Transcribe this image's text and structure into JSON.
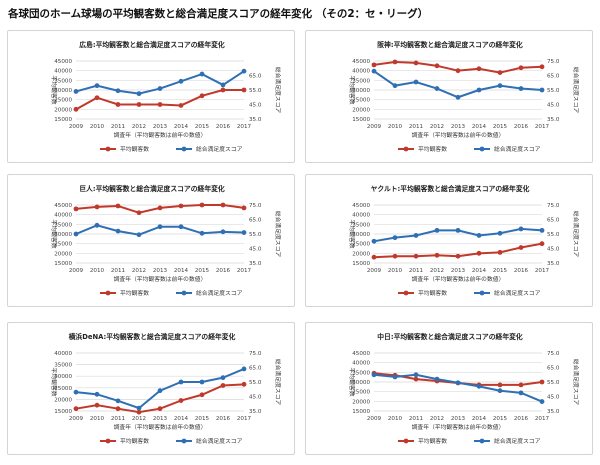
{
  "page_title": "各球団のホーム球場の平均観客数と総合満足度スコアの経年変化 （その2：セ・リーグ）",
  "colors": {
    "attendance": "#c0392b",
    "score": "#2f6fb3",
    "grid": "#d9d9d9"
  },
  "chart_data": [
    {
      "type": "line",
      "title": "広島:平均観客数と総合満足度スコアの経年変化",
      "x": [
        "2009",
        "2010",
        "2011",
        "2012",
        "2013",
        "2014",
        "2015",
        "2016",
        "2017"
      ],
      "xlabel": "調査年（平均観客数は前年の数値）",
      "ylabel_left": "平均観客数",
      "ylabel_right": "総合満足度スコア",
      "left_ticks": [
        "15000",
        "20000",
        "25000",
        "30000",
        "35000",
        "40000",
        "45000"
      ],
      "right_ticks": [
        "35.0",
        "45.0",
        "55.0",
        "65.0"
      ],
      "ylim_left": [
        15000,
        45000
      ],
      "ylim_right": [
        35,
        75
      ],
      "series": [
        {
          "name": "平均観客数",
          "axis": "left",
          "color": "#c0392b",
          "values": [
            20000,
            26000,
            22500,
            22500,
            22500,
            22000,
            27000,
            30000,
            30000
          ]
        },
        {
          "name": "総合満足度スコア",
          "axis": "right",
          "color": "#2f6fb3",
          "values": [
            54.0,
            58.0,
            54.5,
            52.5,
            56.0,
            61.0,
            66.0,
            58.5,
            68.0
          ]
        }
      ],
      "legend": [
        "平均観客数",
        "総合満足度スコア"
      ]
    },
    {
      "type": "line",
      "title": "阪神:平均観客数と総合満足度スコアの経年変化",
      "x": [
        "2009",
        "2010",
        "2011",
        "2012",
        "2013",
        "2014",
        "2015",
        "2016",
        "2017"
      ],
      "xlabel": "調査年（平均観客数は前年の数値）",
      "ylabel_left": "平均観客数",
      "ylabel_right": "総合満足度スコア",
      "left_ticks": [
        "15000",
        "20000",
        "25000",
        "30000",
        "35000",
        "40000",
        "45000"
      ],
      "right_ticks": [
        "35.0",
        "45.0",
        "55.0",
        "65.0",
        "75.0"
      ],
      "ylim_left": [
        15000,
        45000
      ],
      "ylim_right": [
        35,
        75
      ],
      "series": [
        {
          "name": "平均観客数",
          "axis": "left",
          "color": "#c0392b",
          "values": [
            43000,
            44500,
            44000,
            42500,
            40000,
            41000,
            39000,
            41500,
            42000
          ]
        },
        {
          "name": "総合満足度スコア",
          "axis": "right",
          "color": "#2f6fb3",
          "values": [
            68.0,
            58.0,
            60.5,
            56.0,
            50.0,
            55.0,
            58.0,
            56.0,
            55.0
          ]
        }
      ],
      "legend": [
        "平均観客数",
        "総合満足度スコア"
      ]
    },
    {
      "type": "line",
      "title": "巨人:平均観客数と総合満足度スコアの経年変化",
      "x": [
        "2009",
        "2010",
        "2011",
        "2012",
        "2013",
        "2014",
        "2015",
        "2016",
        "2017"
      ],
      "xlabel": "調査年（平均観客数は前年の数値）",
      "ylabel_left": "平均観客数",
      "ylabel_right": "総合満足度スコア",
      "left_ticks": [
        "15000",
        "20000",
        "25000",
        "30000",
        "35000",
        "40000",
        "45000"
      ],
      "right_ticks": [
        "35.0",
        "45.0",
        "55.0",
        "65.0",
        "75.0"
      ],
      "ylim_left": [
        15000,
        45000
      ],
      "ylim_right": [
        35,
        75
      ],
      "series": [
        {
          "name": "平均観客数",
          "axis": "left",
          "color": "#c0392b",
          "values": [
            43000,
            44000,
            44500,
            41000,
            43500,
            44500,
            45000,
            45000,
            43500
          ]
        },
        {
          "name": "総合満足度スコア",
          "axis": "right",
          "color": "#2f6fb3",
          "values": [
            55.0,
            61.0,
            57.0,
            54.5,
            60.0,
            60.0,
            55.5,
            56.5,
            56.0
          ]
        }
      ],
      "legend": [
        "平均観客数",
        "総合満足度スコア"
      ]
    },
    {
      "type": "line",
      "title": "ヤクルト:平均観客数と総合満足度スコアの経年変化",
      "x": [
        "2009",
        "2010",
        "2011",
        "2012",
        "2013",
        "2014",
        "2015",
        "2016",
        "2017"
      ],
      "xlabel": "調査年（平均観客数は前年の数値）",
      "ylabel_left": "平均観客数",
      "ylabel_right": "総合満足度スコア",
      "left_ticks": [
        "15000",
        "20000",
        "25000",
        "30000",
        "35000",
        "40000",
        "45000"
      ],
      "right_ticks": [
        "35.0",
        "45.0",
        "55.0",
        "65.0",
        "75.0"
      ],
      "ylim_left": [
        15000,
        45000
      ],
      "ylim_right": [
        35,
        75
      ],
      "series": [
        {
          "name": "平均観客数",
          "axis": "left",
          "color": "#c0392b",
          "values": [
            18000,
            18500,
            18500,
            19000,
            18500,
            20000,
            20500,
            23000,
            25000
          ]
        },
        {
          "name": "総合満足度スコア",
          "axis": "right",
          "color": "#2f6fb3",
          "values": [
            50.0,
            52.5,
            54.0,
            57.5,
            57.5,
            54.0,
            55.5,
            58.5,
            57.5
          ]
        }
      ],
      "legend": [
        "平均観客数",
        "総合満足度スコア"
      ]
    },
    {
      "type": "line",
      "title": "横浜DeNA:平均観客数と総合満足度スコアの経年変化",
      "x": [
        "2009",
        "2010",
        "2011",
        "2012",
        "2013",
        "2014",
        "2015",
        "2016",
        "2017"
      ],
      "xlabel": "調査年（平均観客数は前年の数値）",
      "ylabel_left": "平均観客数",
      "ylabel_right": "総合満足度スコア",
      "left_ticks": [
        "15000",
        "20000",
        "25000",
        "30000",
        "35000",
        "40000"
      ],
      "right_ticks": [
        "35.0",
        "45.0",
        "55.0",
        "65.0",
        "75.0"
      ],
      "ylim_left": [
        15000,
        40000
      ],
      "ylim_right": [
        35,
        75
      ],
      "series": [
        {
          "name": "平均観客数",
          "axis": "left",
          "color": "#c0392b",
          "values": [
            16000,
            17500,
            16000,
            14500,
            16000,
            19500,
            22000,
            26000,
            26500
          ]
        },
        {
          "name": "総合満足度スコア",
          "axis": "right",
          "color": "#2f6fb3",
          "values": [
            48.0,
            46.5,
            42.0,
            37.0,
            49.0,
            55.0,
            55.0,
            58.0,
            64.0
          ]
        }
      ],
      "legend": [
        "平均観客数",
        "総合満足度スコア"
      ]
    },
    {
      "type": "line",
      "title": "中日:平均観客数と総合満足度スコアの経年変化",
      "x": [
        "2009",
        "2010",
        "2011",
        "2012",
        "2013",
        "2014",
        "2015",
        "2016",
        "2017"
      ],
      "xlabel": "調査年（平均観客数は前年の数値）",
      "ylabel_left": "平均観客数",
      "ylabel_right": "総合満足度スコア",
      "left_ticks": [
        "15000",
        "20000",
        "25000",
        "30000",
        "35000",
        "40000",
        "45000"
      ],
      "right_ticks": [
        "35.0",
        "45.0",
        "55.0",
        "65.0",
        "75.0"
      ],
      "ylim_left": [
        15000,
        45000
      ],
      "ylim_right": [
        35,
        75
      ],
      "series": [
        {
          "name": "平均観客数",
          "axis": "left",
          "color": "#c0392b",
          "values": [
            34500,
            33500,
            31500,
            30500,
            29500,
            28500,
            28500,
            28500,
            30000
          ]
        },
        {
          "name": "総合満足度スコア",
          "axis": "right",
          "color": "#2f6fb3",
          "values": [
            60.0,
            58.5,
            60.0,
            57.0,
            54.5,
            52.0,
            49.0,
            47.5,
            41.5
          ]
        }
      ],
      "legend": [
        "平均観客数",
        "総合満足度スコア"
      ]
    }
  ]
}
